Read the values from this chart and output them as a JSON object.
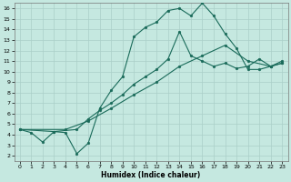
{
  "xlabel": "Humidex (Indice chaleur)",
  "bg_color": "#c5e8e0",
  "grid_color": "#aacfc8",
  "line_color": "#1a6b5a",
  "xlim": [
    -0.5,
    23.5
  ],
  "ylim": [
    1.5,
    16.5
  ],
  "xticks": [
    0,
    1,
    2,
    3,
    4,
    5,
    6,
    7,
    8,
    9,
    10,
    11,
    12,
    13,
    14,
    15,
    16,
    17,
    18,
    19,
    20,
    21,
    22,
    23
  ],
  "yticks": [
    2,
    3,
    4,
    5,
    6,
    7,
    8,
    9,
    10,
    11,
    12,
    13,
    14,
    15,
    16
  ],
  "curve1_x": [
    0,
    1,
    2,
    3,
    4,
    5,
    6,
    7,
    8,
    9,
    10,
    11,
    12,
    13,
    14,
    15,
    16,
    17,
    18,
    19,
    20,
    21,
    22,
    23
  ],
  "curve1_y": [
    4.5,
    4.2,
    3.3,
    4.3,
    4.2,
    2.2,
    3.2,
    6.5,
    8.2,
    9.5,
    13.3,
    14.2,
    14.7,
    15.8,
    16.0,
    15.3,
    16.5,
    15.3,
    13.6,
    12.2,
    10.2,
    10.2,
    10.5,
    11.0
  ],
  "curve2_x": [
    0,
    3,
    5,
    6,
    7,
    8,
    9,
    10,
    11,
    12,
    13,
    14,
    15,
    16,
    17,
    18,
    19,
    20,
    21,
    22,
    23
  ],
  "curve2_y": [
    4.5,
    4.3,
    4.5,
    5.5,
    6.3,
    7.0,
    7.8,
    8.8,
    9.5,
    10.2,
    11.2,
    13.8,
    11.5,
    11.0,
    10.5,
    10.8,
    10.3,
    10.5,
    11.2,
    10.5,
    10.8
  ],
  "curve3_x": [
    0,
    4,
    6,
    8,
    10,
    12,
    14,
    16,
    18,
    20,
    22,
    23
  ],
  "curve3_y": [
    4.5,
    4.5,
    5.3,
    6.5,
    7.8,
    9.0,
    10.5,
    11.5,
    12.5,
    11.0,
    10.5,
    10.8
  ]
}
